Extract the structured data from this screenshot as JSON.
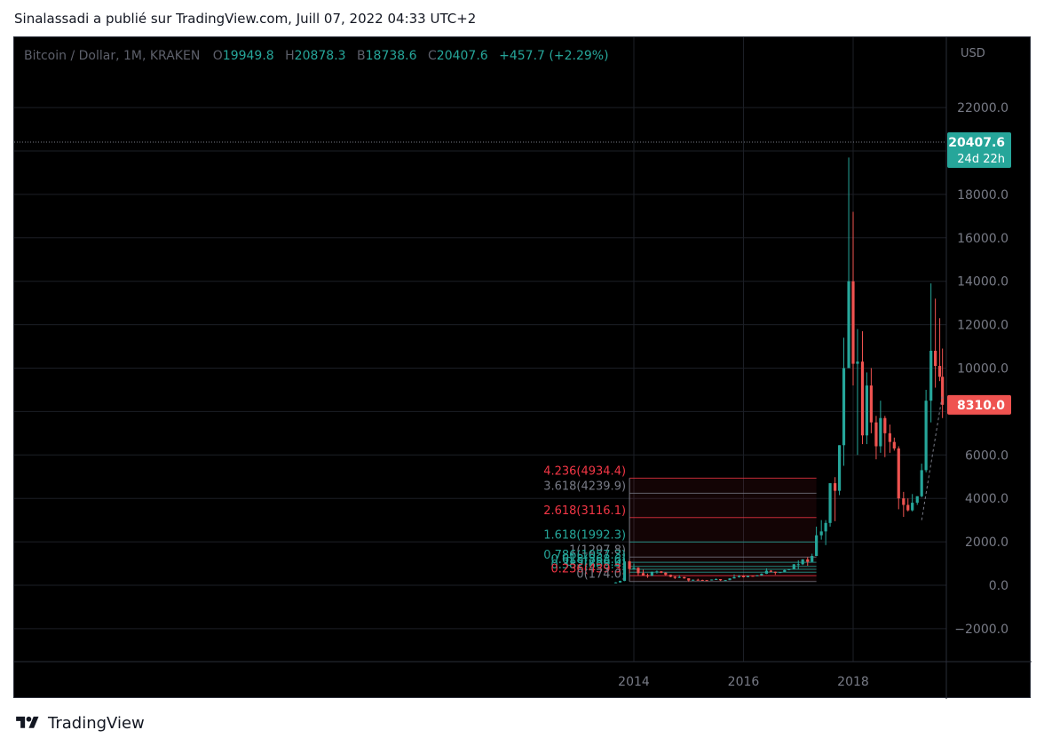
{
  "header": {
    "publish_line": "Sinalassadi a publié sur TradingView.com, Juill 07, 2022 04:33 UTC+2"
  },
  "footer": {
    "brand": "TradingView",
    "logo_icon": "tradingview-logo-icon"
  },
  "legend": {
    "symbol": "Bitcoin / Dollar, 1M, KRAKEN",
    "open_label": "O",
    "open_value": "19949.8",
    "high_label": "H",
    "high_value": "20878.3",
    "low_label": "B",
    "low_value": "18738.6",
    "close_label": "C",
    "close_value": "20407.6",
    "change": "+457.7 (+2.29%)"
  },
  "colors": {
    "up": "#26a69a",
    "down": "#ef5350",
    "background": "#000000",
    "grid": "#1c1f26",
    "axis_text": "#787b86",
    "fib_red": "#f23645",
    "fib_gray": "#787b86",
    "fib_teal": "#26a69a"
  },
  "chart_data": {
    "type": "candlestick",
    "currency": "USD",
    "y_ticks": [
      "22000.0",
      "18000.0",
      "16000.0",
      "14000.0",
      "12000.0",
      "10000.0",
      "6000.0",
      "4000.0",
      "2000.0",
      "0.0",
      "−2000.0"
    ],
    "x_ticks": [
      "2014",
      "2016",
      "2018"
    ],
    "ylim": [
      -2500,
      24000
    ],
    "xlim": [
      2013.33,
      2019.63
    ],
    "grid": true,
    "price_tags": [
      {
        "value": 20407.6,
        "label": "20407.6",
        "sublabel": "24d 22h",
        "color": "#26a69a"
      },
      {
        "value": 8310.0,
        "label": "8310.0",
        "color": "#ef5350"
      }
    ],
    "candles": [
      {
        "t": 2013.67,
        "o": 100,
        "h": 140,
        "l": 90,
        "c": 130
      },
      {
        "t": 2013.75,
        "o": 130,
        "h": 210,
        "l": 120,
        "c": 200
      },
      {
        "t": 2013.83,
        "o": 200,
        "h": 1200,
        "l": 190,
        "c": 1100
      },
      {
        "t": 2013.92,
        "o": 1100,
        "h": 1160,
        "l": 550,
        "c": 750
      },
      {
        "t": 2014.0,
        "o": 750,
        "h": 1000,
        "l": 730,
        "c": 800
      },
      {
        "t": 2014.08,
        "o": 800,
        "h": 830,
        "l": 450,
        "c": 560
      },
      {
        "t": 2014.17,
        "o": 560,
        "h": 720,
        "l": 450,
        "c": 450
      },
      {
        "t": 2014.25,
        "o": 450,
        "h": 540,
        "l": 340,
        "c": 440
      },
      {
        "t": 2014.33,
        "o": 440,
        "h": 630,
        "l": 420,
        "c": 620
      },
      {
        "t": 2014.42,
        "o": 620,
        "h": 680,
        "l": 540,
        "c": 640
      },
      {
        "t": 2014.5,
        "o": 640,
        "h": 650,
        "l": 560,
        "c": 580
      },
      {
        "t": 2014.58,
        "o": 580,
        "h": 600,
        "l": 440,
        "c": 480
      },
      {
        "t": 2014.67,
        "o": 480,
        "h": 490,
        "l": 370,
        "c": 390
      },
      {
        "t": 2014.75,
        "o": 390,
        "h": 420,
        "l": 290,
        "c": 340
      },
      {
        "t": 2014.83,
        "o": 340,
        "h": 460,
        "l": 330,
        "c": 380
      },
      {
        "t": 2014.92,
        "o": 380,
        "h": 390,
        "l": 300,
        "c": 320
      },
      {
        "t": 2015.0,
        "o": 320,
        "h": 320,
        "l": 160,
        "c": 220
      },
      {
        "t": 2015.08,
        "o": 220,
        "h": 270,
        "l": 210,
        "c": 255
      },
      {
        "t": 2015.17,
        "o": 255,
        "h": 300,
        "l": 240,
        "c": 245
      },
      {
        "t": 2015.25,
        "o": 245,
        "h": 260,
        "l": 215,
        "c": 235
      },
      {
        "t": 2015.33,
        "o": 235,
        "h": 245,
        "l": 225,
        "c": 230
      },
      {
        "t": 2015.42,
        "o": 230,
        "h": 270,
        "l": 220,
        "c": 265
      },
      {
        "t": 2015.5,
        "o": 265,
        "h": 320,
        "l": 255,
        "c": 285
      },
      {
        "t": 2015.58,
        "o": 285,
        "h": 285,
        "l": 200,
        "c": 230
      },
      {
        "t": 2015.67,
        "o": 230,
        "h": 245,
        "l": 225,
        "c": 238
      },
      {
        "t": 2015.75,
        "o": 238,
        "h": 330,
        "l": 235,
        "c": 315
      },
      {
        "t": 2015.83,
        "o": 315,
        "h": 500,
        "l": 310,
        "c": 375
      },
      {
        "t": 2015.92,
        "o": 375,
        "h": 470,
        "l": 350,
        "c": 430
      },
      {
        "t": 2016.0,
        "o": 430,
        "h": 460,
        "l": 360,
        "c": 370
      },
      {
        "t": 2016.08,
        "o": 370,
        "h": 440,
        "l": 365,
        "c": 435
      },
      {
        "t": 2016.17,
        "o": 435,
        "h": 440,
        "l": 400,
        "c": 415
      },
      {
        "t": 2016.25,
        "o": 415,
        "h": 470,
        "l": 410,
        "c": 450
      },
      {
        "t": 2016.33,
        "o": 450,
        "h": 550,
        "l": 440,
        "c": 530
      },
      {
        "t": 2016.42,
        "o": 530,
        "h": 780,
        "l": 520,
        "c": 670
      },
      {
        "t": 2016.5,
        "o": 670,
        "h": 700,
        "l": 600,
        "c": 625
      },
      {
        "t": 2016.58,
        "o": 625,
        "h": 630,
        "l": 480,
        "c": 575
      },
      {
        "t": 2016.67,
        "o": 575,
        "h": 615,
        "l": 565,
        "c": 610
      },
      {
        "t": 2016.75,
        "o": 610,
        "h": 720,
        "l": 605,
        "c": 700
      },
      {
        "t": 2016.83,
        "o": 700,
        "h": 750,
        "l": 690,
        "c": 745
      },
      {
        "t": 2016.92,
        "o": 745,
        "h": 980,
        "l": 740,
        "c": 965
      },
      {
        "t": 2017.0,
        "o": 965,
        "h": 1150,
        "l": 750,
        "c": 970
      },
      {
        "t": 2017.08,
        "o": 970,
        "h": 1200,
        "l": 930,
        "c": 1190
      },
      {
        "t": 2017.17,
        "o": 1190,
        "h": 1300,
        "l": 900,
        "c": 1080
      },
      {
        "t": 2017.25,
        "o": 1080,
        "h": 1450,
        "l": 1070,
        "c": 1350
      },
      {
        "t": 2017.33,
        "o": 1350,
        "h": 2700,
        "l": 1340,
        "c": 2300
      },
      {
        "t": 2017.42,
        "o": 2300,
        "h": 3000,
        "l": 2100,
        "c": 2480
      },
      {
        "t": 2017.5,
        "o": 2480,
        "h": 3000,
        "l": 1850,
        "c": 2870
      },
      {
        "t": 2017.58,
        "o": 2870,
        "h": 4700,
        "l": 2700,
        "c": 4700
      },
      {
        "t": 2017.67,
        "o": 4700,
        "h": 4980,
        "l": 2950,
        "c": 4350
      },
      {
        "t": 2017.75,
        "o": 4350,
        "h": 6450,
        "l": 4150,
        "c": 6450
      },
      {
        "t": 2017.83,
        "o": 6450,
        "h": 11400,
        "l": 5500,
        "c": 10000
      },
      {
        "t": 2017.92,
        "o": 10000,
        "h": 19700,
        "l": 10000,
        "c": 14000
      },
      {
        "t": 2018.0,
        "o": 14000,
        "h": 17200,
        "l": 9200,
        "c": 10200
      },
      {
        "t": 2018.08,
        "o": 10200,
        "h": 11800,
        "l": 6000,
        "c": 10300
      },
      {
        "t": 2018.17,
        "o": 10300,
        "h": 11700,
        "l": 6500,
        "c": 6900
      },
      {
        "t": 2018.25,
        "o": 6900,
        "h": 9800,
        "l": 6500,
        "c": 9200
      },
      {
        "t": 2018.33,
        "o": 9200,
        "h": 10000,
        "l": 7000,
        "c": 7500
      },
      {
        "t": 2018.42,
        "o": 7500,
        "h": 7800,
        "l": 5800,
        "c": 6400
      },
      {
        "t": 2018.5,
        "o": 6400,
        "h": 8500,
        "l": 6100,
        "c": 7700
      },
      {
        "t": 2018.58,
        "o": 7700,
        "h": 7800,
        "l": 5900,
        "c": 7000
      },
      {
        "t": 2018.67,
        "o": 7000,
        "h": 7400,
        "l": 6100,
        "c": 6600
      },
      {
        "t": 2018.75,
        "o": 6600,
        "h": 6800,
        "l": 6200,
        "c": 6300
      },
      {
        "t": 2018.83,
        "o": 6300,
        "h": 6400,
        "l": 3500,
        "c": 4000
      },
      {
        "t": 2018.92,
        "o": 4000,
        "h": 4300,
        "l": 3150,
        "c": 3700
      },
      {
        "t": 2019.0,
        "o": 3700,
        "h": 4000,
        "l": 3400,
        "c": 3450
      },
      {
        "t": 2019.08,
        "o": 3450,
        "h": 4200,
        "l": 3400,
        "c": 3800
      },
      {
        "t": 2019.17,
        "o": 3800,
        "h": 4100,
        "l": 3700,
        "c": 4100
      },
      {
        "t": 2019.25,
        "o": 4100,
        "h": 5600,
        "l": 4050,
        "c": 5300
      },
      {
        "t": 2019.33,
        "o": 5300,
        "h": 9000,
        "l": 5200,
        "c": 8500
      },
      {
        "t": 2019.42,
        "o": 8500,
        "h": 13900,
        "l": 7500,
        "c": 10800
      },
      {
        "t": 2019.5,
        "o": 10800,
        "h": 13200,
        "l": 9100,
        "c": 10100
      },
      {
        "t": 2019.58,
        "o": 10100,
        "h": 12300,
        "l": 9400,
        "c": 9600
      },
      {
        "t": 2019.63,
        "o": 9600,
        "h": 10900,
        "l": 7700,
        "c": 8310
      }
    ],
    "fibonacci": {
      "x_start": 2013.92,
      "x_end": 2017.33,
      "levels": [
        {
          "label": "4.236(4934.4)",
          "value": 4934.4,
          "color": "#f23645"
        },
        {
          "label": "3.618(4239.9)",
          "value": 4239.9,
          "color": "#787b86"
        },
        {
          "label": "2.618(3116.1)",
          "value": 3116.1,
          "color": "#f23645"
        },
        {
          "label": "1.618(1992.3)",
          "value": 1992.3,
          "color": "#26a69a"
        },
        {
          "label": "1(1297.8)",
          "value": 1297.8,
          "color": "#787b86"
        },
        {
          "label": "0.786(1057.3)",
          "value": 1057.3,
          "color": "#26a69a"
        },
        {
          "label": "0.618(868.6)",
          "value": 868.6,
          "color": "#26a69a"
        },
        {
          "label": "0.5(736.0)",
          "value": 736.0,
          "color": "#26a69a"
        },
        {
          "label": "0.382(603.4)",
          "value": 603.4,
          "color": "#26a69a"
        },
        {
          "label": "0.236(439.3)",
          "value": 439.3,
          "color": "#f23645"
        },
        {
          "label": "0(174.0)",
          "value": 174.0,
          "color": "#787b86"
        }
      ]
    }
  }
}
